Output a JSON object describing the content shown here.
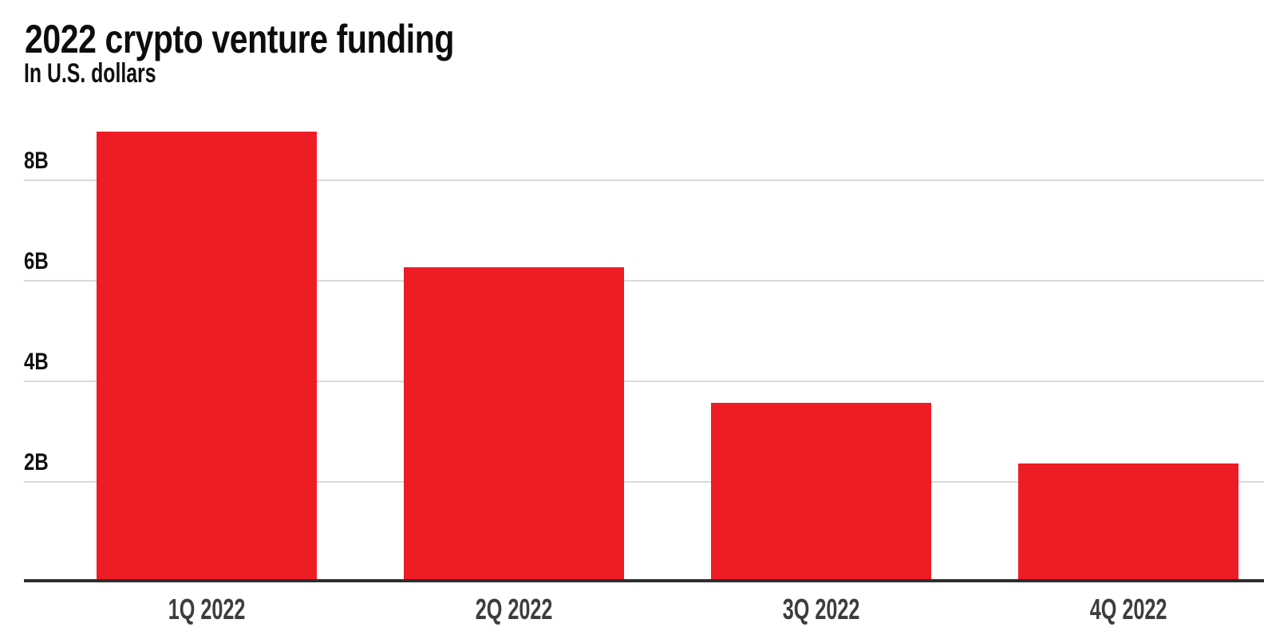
{
  "header": {
    "title": "2022 crypto venture funding",
    "subtitle": "In U.S. dollars"
  },
  "chart_data": {
    "type": "bar",
    "title": "2022 crypto venture funding",
    "subtitle": "In U.S. dollars",
    "categories": [
      "1Q 2022",
      "2Q 2022",
      "3Q 2022",
      "4Q 2022"
    ],
    "values": [
      8.9,
      6.2,
      3.5,
      2.3
    ],
    "value_suffix": "B",
    "y_ticks": [
      {
        "value": 2,
        "label": "2B"
      },
      {
        "value": 4,
        "label": "4B"
      },
      {
        "value": 6,
        "label": "6B"
      },
      {
        "value": 8,
        "label": "8B"
      }
    ],
    "ylim": [
      0,
      9.33
    ],
    "xlabel": "",
    "ylabel": "",
    "legend_position": "none",
    "grid": "horizontal",
    "colors": {
      "bar": "#ee1c25",
      "gridline": "#d9d9d9",
      "axis": "#2d2d2d",
      "tick_label": "#101010",
      "category_label": "#3d3d3d",
      "title": "#0d0d0d",
      "background": "#ffffff"
    }
  }
}
